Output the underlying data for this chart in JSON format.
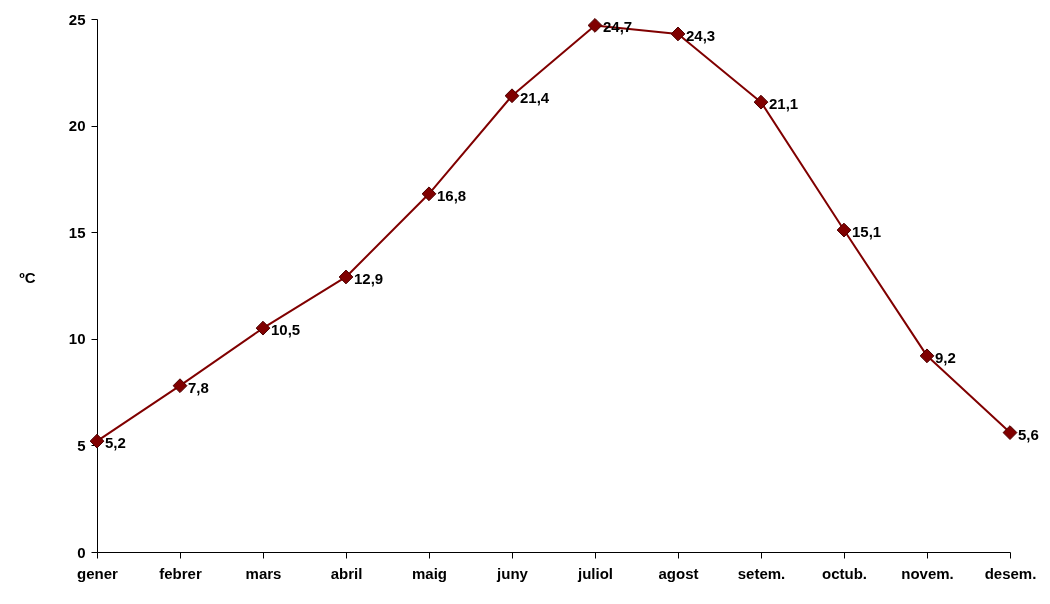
{
  "chart_data": {
    "type": "line",
    "ylabel": "ºC",
    "categories": [
      "gener",
      "febrer",
      "mars",
      "abril",
      "maig",
      "juny",
      "juliol",
      "agost",
      "setem.",
      "octub.",
      "novem.",
      "desem."
    ],
    "values": [
      5.2,
      7.8,
      10.5,
      12.9,
      16.8,
      21.4,
      24.7,
      24.3,
      21.1,
      15.1,
      9.2,
      5.6
    ],
    "value_labels": [
      "5,2",
      "7,8",
      "10,5",
      "12,9",
      "16,8",
      "21,4",
      "24,7",
      "24,3",
      "21,1",
      "15,1",
      "9,2",
      "5,6"
    ],
    "color": "#800000",
    "marker": "diamond",
    "line_style": "solid",
    "ylim": [
      0,
      25
    ],
    "yticks": [
      0,
      5,
      10,
      15,
      20,
      25
    ]
  }
}
